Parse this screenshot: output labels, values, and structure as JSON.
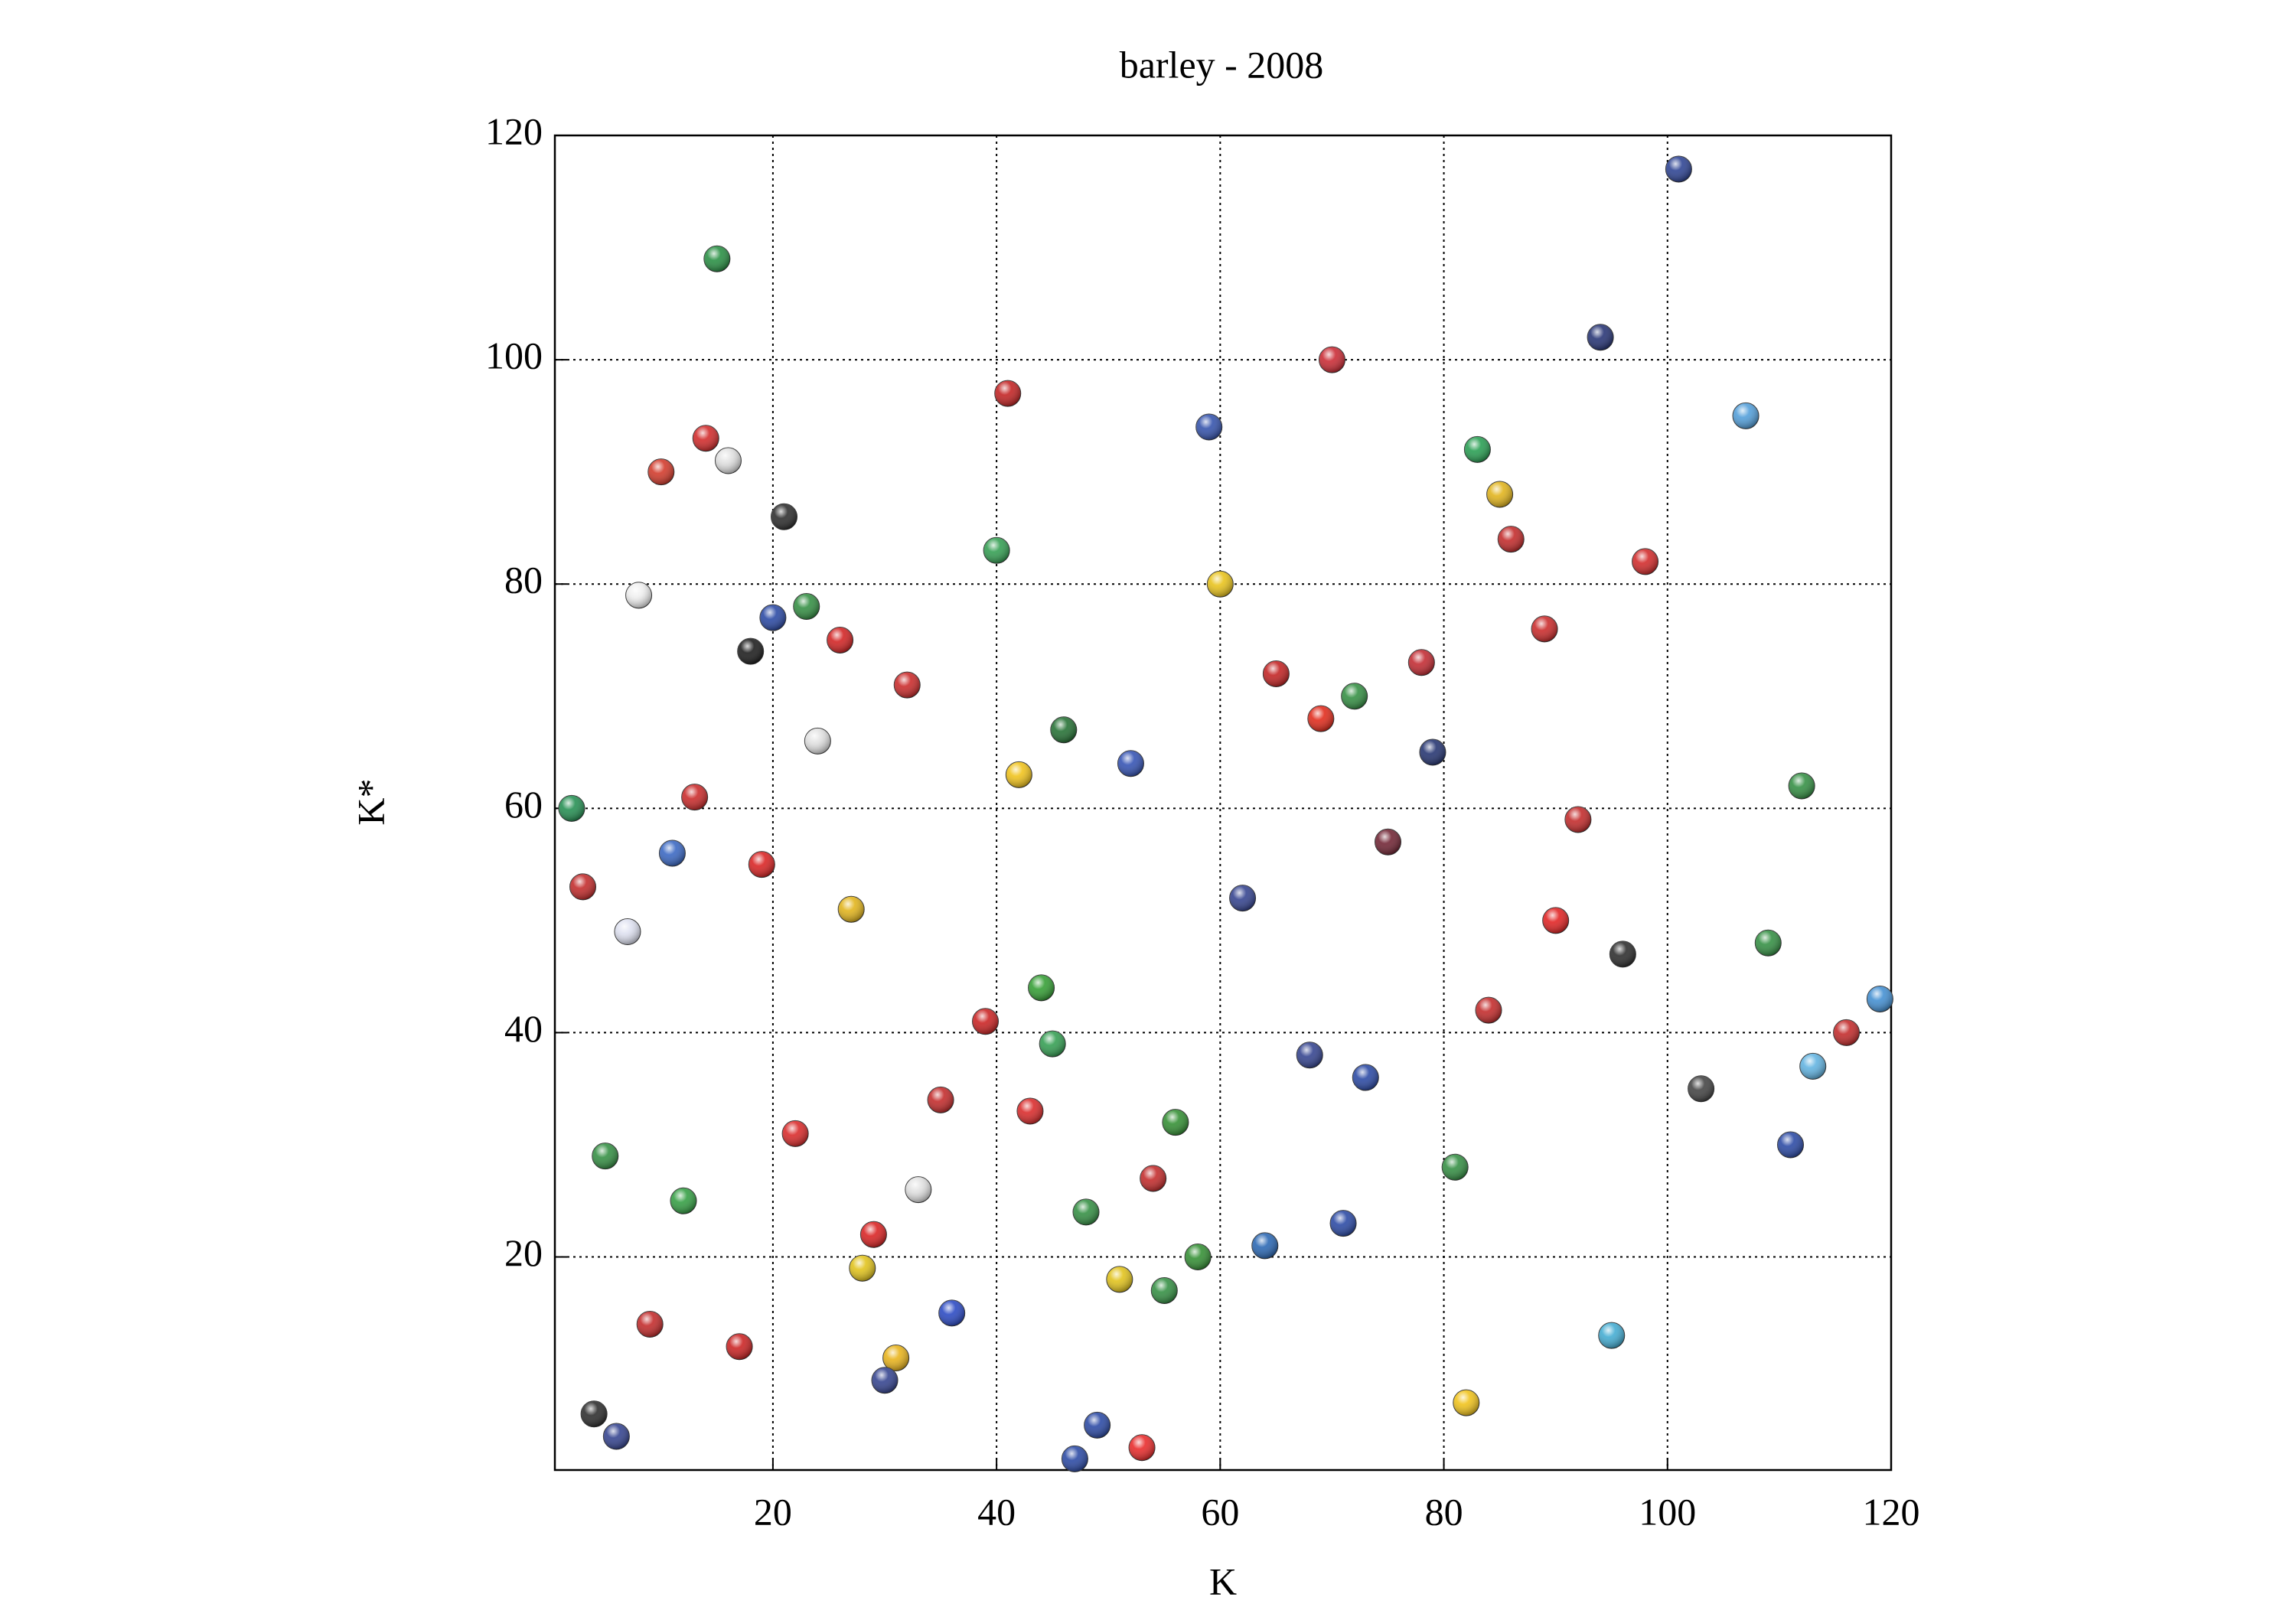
{
  "chart_data": {
    "type": "scatter",
    "title": "barley - 2008",
    "xlabel": "K",
    "ylabel": "K*",
    "x": [
      101,
      15,
      94,
      70,
      107,
      41,
      59,
      83,
      14,
      10,
      16,
      85,
      21,
      86,
      40,
      98,
      8,
      60,
      20,
      23,
      18,
      26,
      89,
      78,
      65,
      32,
      72,
      69,
      46,
      24,
      79,
      52,
      42,
      2,
      13,
      112,
      75,
      92,
      3,
      11,
      19,
      62,
      27,
      7,
      90,
      96,
      109,
      44,
      39,
      84,
      119,
      116,
      45,
      68,
      73,
      103,
      113,
      35,
      43,
      22,
      56,
      5,
      54,
      81,
      111,
      33,
      12,
      48,
      71,
      29,
      64,
      58,
      28,
      51,
      55,
      36,
      9,
      95,
      17,
      31,
      30,
      82,
      4,
      49,
      6,
      53,
      47
    ],
    "values": [
      117,
      109,
      102,
      100,
      95,
      97,
      94,
      92,
      93,
      90,
      91,
      88,
      86,
      84,
      83,
      82,
      79,
      80,
      77,
      78,
      74,
      75,
      76,
      73,
      72,
      71,
      70,
      68,
      67,
      66,
      65,
      64,
      63,
      60,
      61,
      62,
      57,
      59,
      53,
      56,
      55,
      52,
      51,
      49,
      50,
      47,
      48,
      44,
      41,
      42,
      43,
      40,
      39,
      38,
      36,
      35,
      37,
      34,
      33,
      31,
      32,
      29,
      27,
      28,
      30,
      26,
      25,
      24,
      23,
      22,
      21,
      20,
      19,
      18,
      17,
      15,
      14,
      13,
      12,
      11,
      9,
      7,
      6,
      5,
      4,
      3,
      2
    ],
    "colors": [
      "#233a8e",
      "#1e8a3a",
      "#1c2a6e",
      "#c8202a",
      "#4a9ad8",
      "#c01818",
      "#2a4aa8",
      "#1e9a4a",
      "#d02020",
      "#d03020",
      "#e0e0e0",
      "#e0b010",
      "#222222",
      "#c02020",
      "#2a9a4a",
      "#d02020",
      "#eeeeee",
      "#e8c010",
      "#2040a0",
      "#2a8a3a",
      "#111111",
      "#d01818",
      "#c82020",
      "#c02028",
      "#c01818",
      "#c82020",
      "#2a8a3a",
      "#e02010",
      "#1a6a2a",
      "#e0e0e0",
      "#1a2a6a",
      "#2a4ab0",
      "#f0c010",
      "#1a8a4a",
      "#c82020",
      "#2a8a3a",
      "#6a1a2a",
      "#c02020",
      "#c02020",
      "#3060c0",
      "#d81818",
      "#2a3a8a",
      "#e0b010",
      "#dde0f0",
      "#e01818",
      "#222222",
      "#2a8a3a",
      "#2a9a2a",
      "#c81818",
      "#c02020",
      "#3a8ad0",
      "#c02020",
      "#2a9a4a",
      "#2a3a8a",
      "#2040a0",
      "#3a3a3a",
      "#5ab0e0",
      "#c02020",
      "#d82020",
      "#d82020",
      "#2a8a2a",
      "#2a8a3a",
      "#c02020",
      "#2a8a3a",
      "#2040a0",
      "#e0e0e0",
      "#2a9a3a",
      "#2a8a3a",
      "#2040a0",
      "#d81818",
      "#2060b0",
      "#2a8a2a",
      "#e0c010",
      "#e0c010",
      "#2a8a3a",
      "#2040c0",
      "#c02020",
      "#3aa8d0",
      "#c81818",
      "#e8b010",
      "#2a3a8a",
      "#f0c010",
      "#222222",
      "#2040a0",
      "#2a3a8a",
      "#e82020",
      "#2040a0"
    ],
    "xlim": [
      0.5,
      120
    ],
    "ylim": [
      1,
      120
    ],
    "xticks": [
      20,
      40,
      60,
      80,
      100,
      120
    ],
    "yticks": [
      20,
      40,
      60,
      80,
      100,
      120
    ],
    "grid": true
  }
}
